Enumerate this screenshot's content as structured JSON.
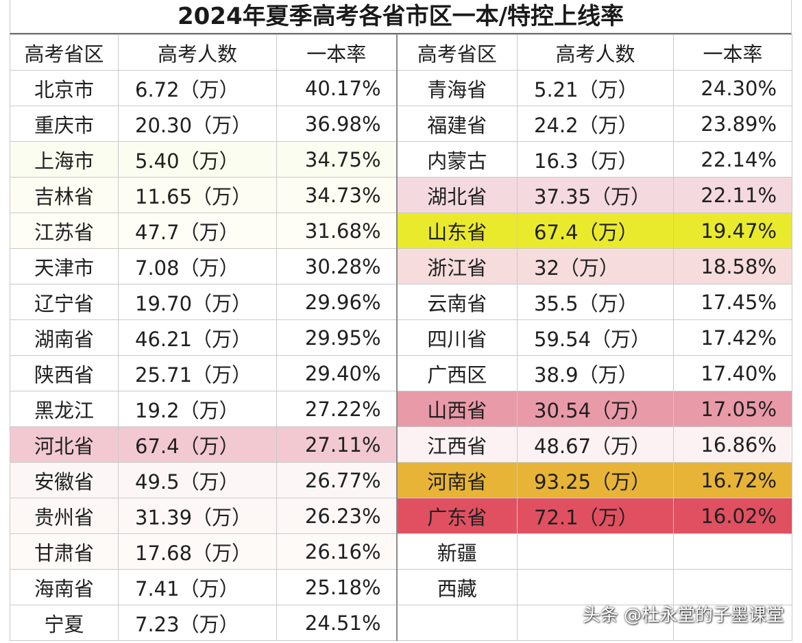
{
  "title": "2024年夏季高考各省市区一本/特控上线率",
  "headers": [
    "高考省区",
    "高考人数",
    "一本率",
    "高考省区",
    "高考人数",
    "一本率"
  ],
  "left_rows": [
    {
      "province": "北京市",
      "examinees": "6.72（万）",
      "rate": "40.17%",
      "highlight": ""
    },
    {
      "province": "重庆市",
      "examinees": "20.30（万）",
      "rate": "36.98%",
      "highlight": ""
    },
    {
      "province": "上海市",
      "examinees": "5.40（万）",
      "rate": "34.75%",
      "highlight": "#fbfdf0"
    },
    {
      "province": "吉林省",
      "examinees": "11.65（万）",
      "rate": "34.73%",
      "highlight": "#fdfdf3"
    },
    {
      "province": "江苏省",
      "examinees": "47.7（万）",
      "rate": "31.68%",
      "highlight": "#fefef6"
    },
    {
      "province": "天津市",
      "examinees": "7.08（万）",
      "rate": "30.28%",
      "highlight": ""
    },
    {
      "province": "辽宁省",
      "examinees": "19.70（万）",
      "rate": "29.96%",
      "highlight": ""
    },
    {
      "province": "湖南省",
      "examinees": "46.21（万）",
      "rate": "29.95%",
      "highlight": ""
    },
    {
      "province": "陕西省",
      "examinees": "25.71（万）",
      "rate": "29.40%",
      "highlight": ""
    },
    {
      "province": "黑龙江",
      "examinees": "19.2（万）",
      "rate": "27.22%",
      "highlight": ""
    },
    {
      "province": "河北省",
      "examinees": "67.4（万）",
      "rate": "27.11%",
      "highlight": "#f2c9d1"
    },
    {
      "province": "安徽省",
      "examinees": "49.5（万）",
      "rate": "26.77%",
      "highlight": "#fdf6f6"
    },
    {
      "province": "贵州省",
      "examinees": "31.39（万）",
      "rate": "26.23%",
      "highlight": "#fdf7f6"
    },
    {
      "province": "甘肃省",
      "examinees": "17.68（万）",
      "rate": "26.16%",
      "highlight": "#fefaf7"
    },
    {
      "province": "海南省",
      "examinees": "7.41（万）",
      "rate": "25.18%",
      "highlight": ""
    },
    {
      "province": "宁夏",
      "examinees": "7.23（万）",
      "rate": "24.51%",
      "highlight": ""
    }
  ],
  "right_rows": [
    {
      "province": "青海省",
      "examinees": "5.21（万）",
      "rate": "24.30%",
      "highlight": ""
    },
    {
      "province": "福建省",
      "examinees": "24.2（万）",
      "rate": "23.89%",
      "highlight": ""
    },
    {
      "province": "内蒙古",
      "examinees": "16.3（万）",
      "rate": "22.14%",
      "highlight": ""
    },
    {
      "province": "湖北省",
      "examinees": "37.35（万）",
      "rate": "22.11%",
      "highlight": "#f4d9df"
    },
    {
      "province": "山东省",
      "examinees": "67.4（万）",
      "rate": "19.47%",
      "highlight": "#eaea2c"
    },
    {
      "province": "浙江省",
      "examinees": "32（万）",
      "rate": "18.58%",
      "highlight": "#f6dcdc"
    },
    {
      "province": "云南省",
      "examinees": "35.5（万）",
      "rate": "17.45%",
      "highlight": ""
    },
    {
      "province": "四川省",
      "examinees": "59.54（万）",
      "rate": "17.42%",
      "highlight": ""
    },
    {
      "province": "广西区",
      "examinees": "38.9（万）",
      "rate": "17.40%",
      "highlight": ""
    },
    {
      "province": "山西省",
      "examinees": "30.54（万）",
      "rate": "17.05%",
      "highlight": "#e99aa8"
    },
    {
      "province": "江西省",
      "examinees": "48.67（万）",
      "rate": "16.86%",
      "highlight": "#fdf2f3"
    },
    {
      "province": "河南省",
      "examinees": "93.25（万）",
      "rate": "16.72%",
      "highlight": "#e8b437"
    },
    {
      "province": "广东省",
      "examinees": "72.1（万）",
      "rate": "16.02%",
      "highlight": "#e05060"
    },
    {
      "province": "新疆",
      "examinees": "",
      "rate": "",
      "highlight": ""
    },
    {
      "province": "西藏",
      "examinees": "",
      "rate": "",
      "highlight": ""
    },
    {
      "province": "",
      "examinees": "",
      "rate": "",
      "highlight": ""
    }
  ],
  "watermark": "头条 @杜永堂的子墨课堂"
}
